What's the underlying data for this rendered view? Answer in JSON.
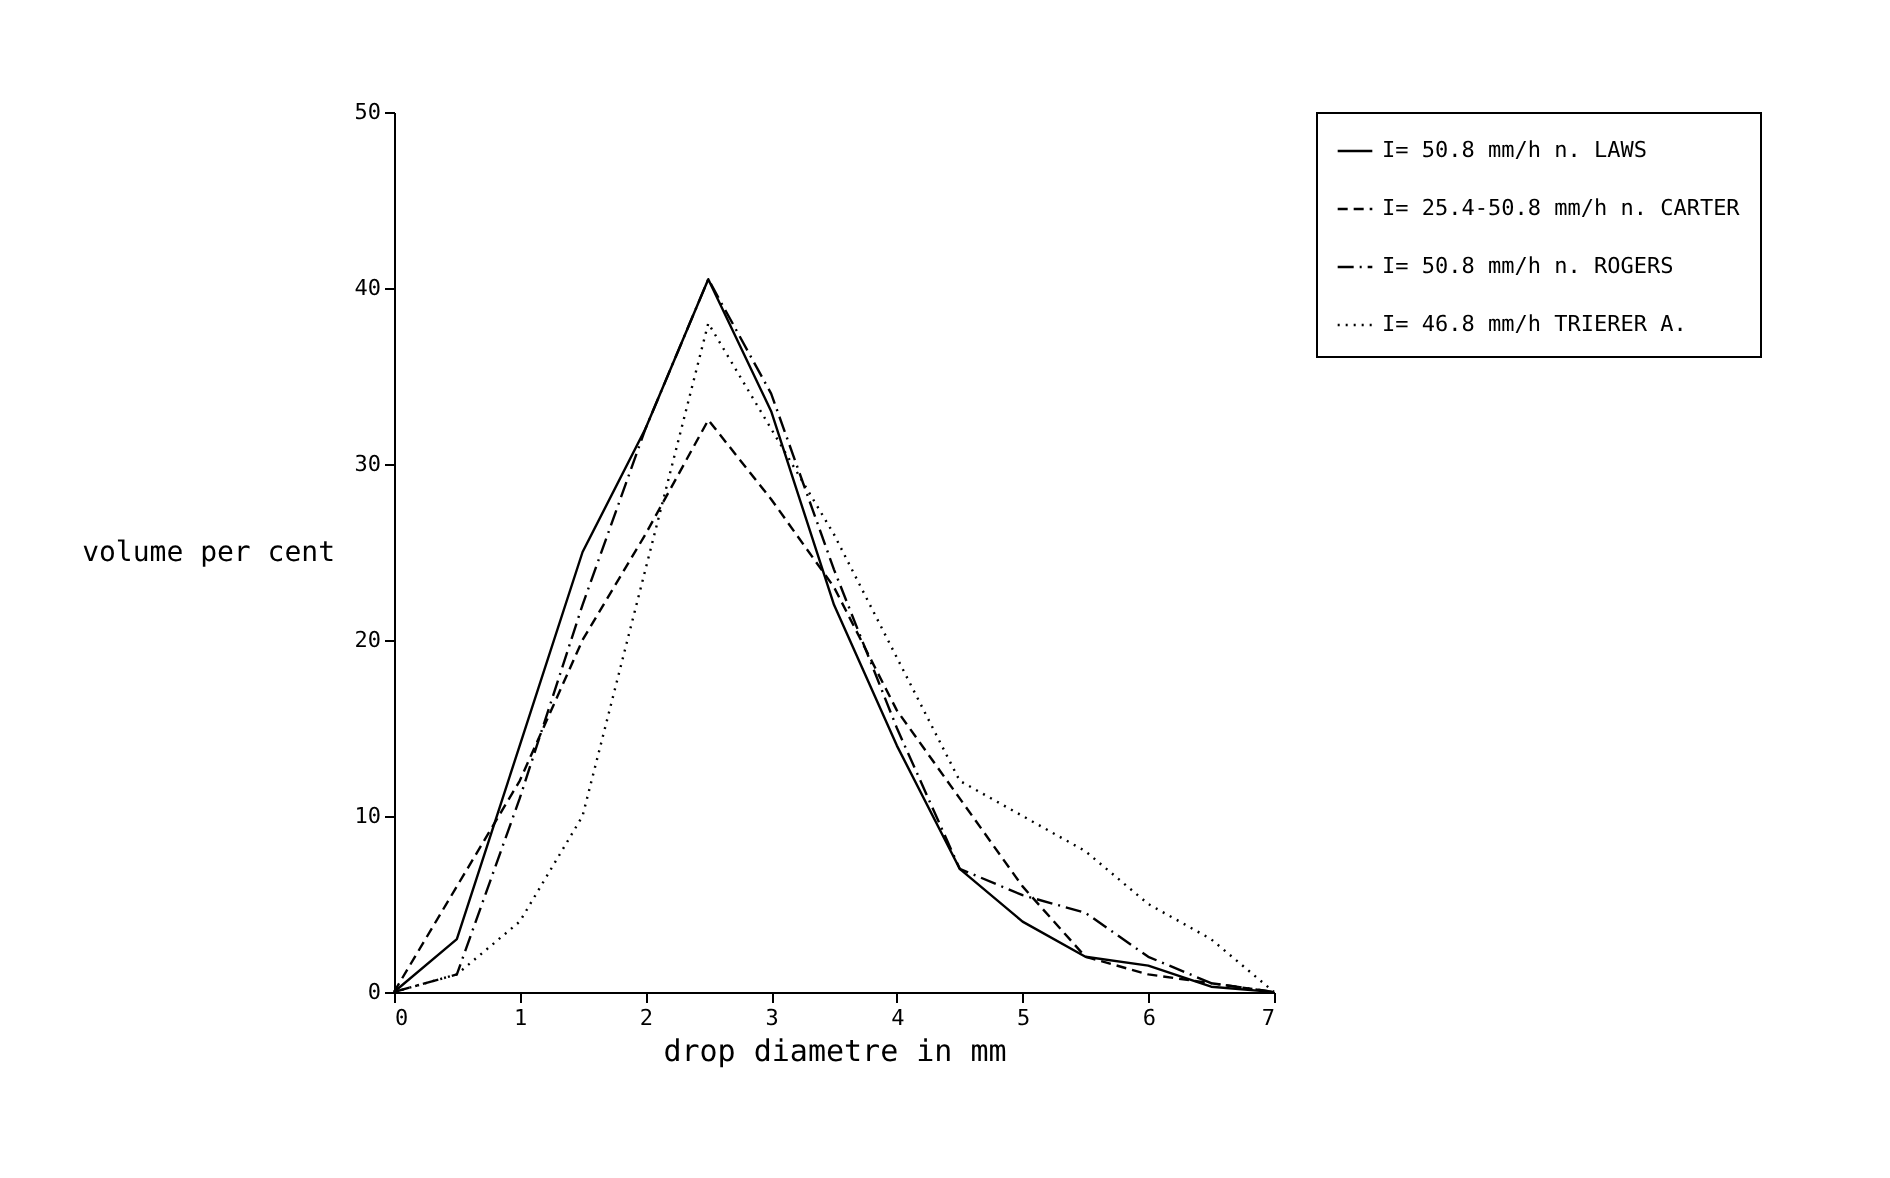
{
  "chart_data": {
    "type": "line",
    "xlabel": "drop diametre in mm",
    "ylabel": "volume per cent",
    "x": [
      0,
      0.5,
      1,
      1.5,
      2,
      2.5,
      3,
      3.5,
      4,
      4.5,
      5,
      5.5,
      6,
      6.5,
      7
    ],
    "series": [
      {
        "name": "I= 50.8 mm/h n. LAWS",
        "color": "#000000",
        "line_style": "solid",
        "values": [
          0,
          3,
          14,
          25,
          32,
          40.5,
          33,
          22,
          14,
          7,
          4,
          2,
          1.5,
          0.3,
          0
        ]
      },
      {
        "name": "I= 25.4-50.8 mm/h n. CARTER",
        "color": "#000000",
        "line_style": "dashed",
        "values": [
          0,
          6,
          12,
          20,
          26,
          32.5,
          28,
          23,
          16,
          11,
          6,
          2,
          1,
          0.5,
          0
        ]
      },
      {
        "name": "I= 50.8 mm/h n. ROGERS",
        "color": "#000000",
        "line_style": "dashdot",
        "values": [
          0,
          1,
          11,
          22,
          32,
          40.5,
          34,
          24,
          15,
          7,
          5.5,
          4.5,
          2,
          0.5,
          0
        ]
      },
      {
        "name": "I= 46.8 mm/h TRIERER A.",
        "color": "#000000",
        "line_style": "dotted",
        "values": [
          0,
          1,
          4,
          10,
          24,
          38,
          32,
          26,
          19,
          12,
          10,
          8,
          5,
          3,
          0
        ]
      }
    ],
    "xlim": [
      0,
      7
    ],
    "xticks": [
      0,
      1,
      2,
      3,
      4,
      5,
      6,
      7
    ],
    "ylim": [
      0,
      50
    ],
    "yticks": [
      0,
      10,
      20,
      30,
      40,
      50
    ],
    "grid": false,
    "legend": "right",
    "marker": "none"
  }
}
